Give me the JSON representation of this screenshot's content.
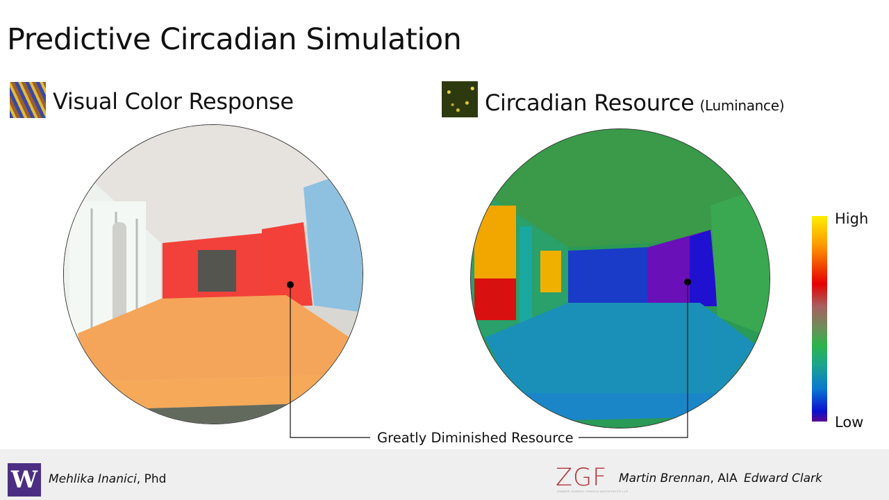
{
  "title": "Predictive Circadian Simulation",
  "left_panel": {
    "heading": "Visual Color Response"
  },
  "right_panel": {
    "heading": "Circadian Resource",
    "heading_note": "(Luminance)"
  },
  "color_scale": {
    "high_label": "High",
    "low_label": "Low"
  },
  "callout": {
    "label": "Greatly Diminished Resource"
  },
  "footer": {
    "logo_letter": "W",
    "author_left_name": "Mehlika Inanici",
    "author_left_title": ", Phd",
    "firm_logo": "ZGF",
    "firm_logo_subtext": "ZIMMER GUNSUL FRASCA ARCHITECTS LLP",
    "author_right_1_name": "Martin Brennan",
    "author_right_1_title": ", AIA",
    "author_right_2_name": "Edward Clark"
  }
}
